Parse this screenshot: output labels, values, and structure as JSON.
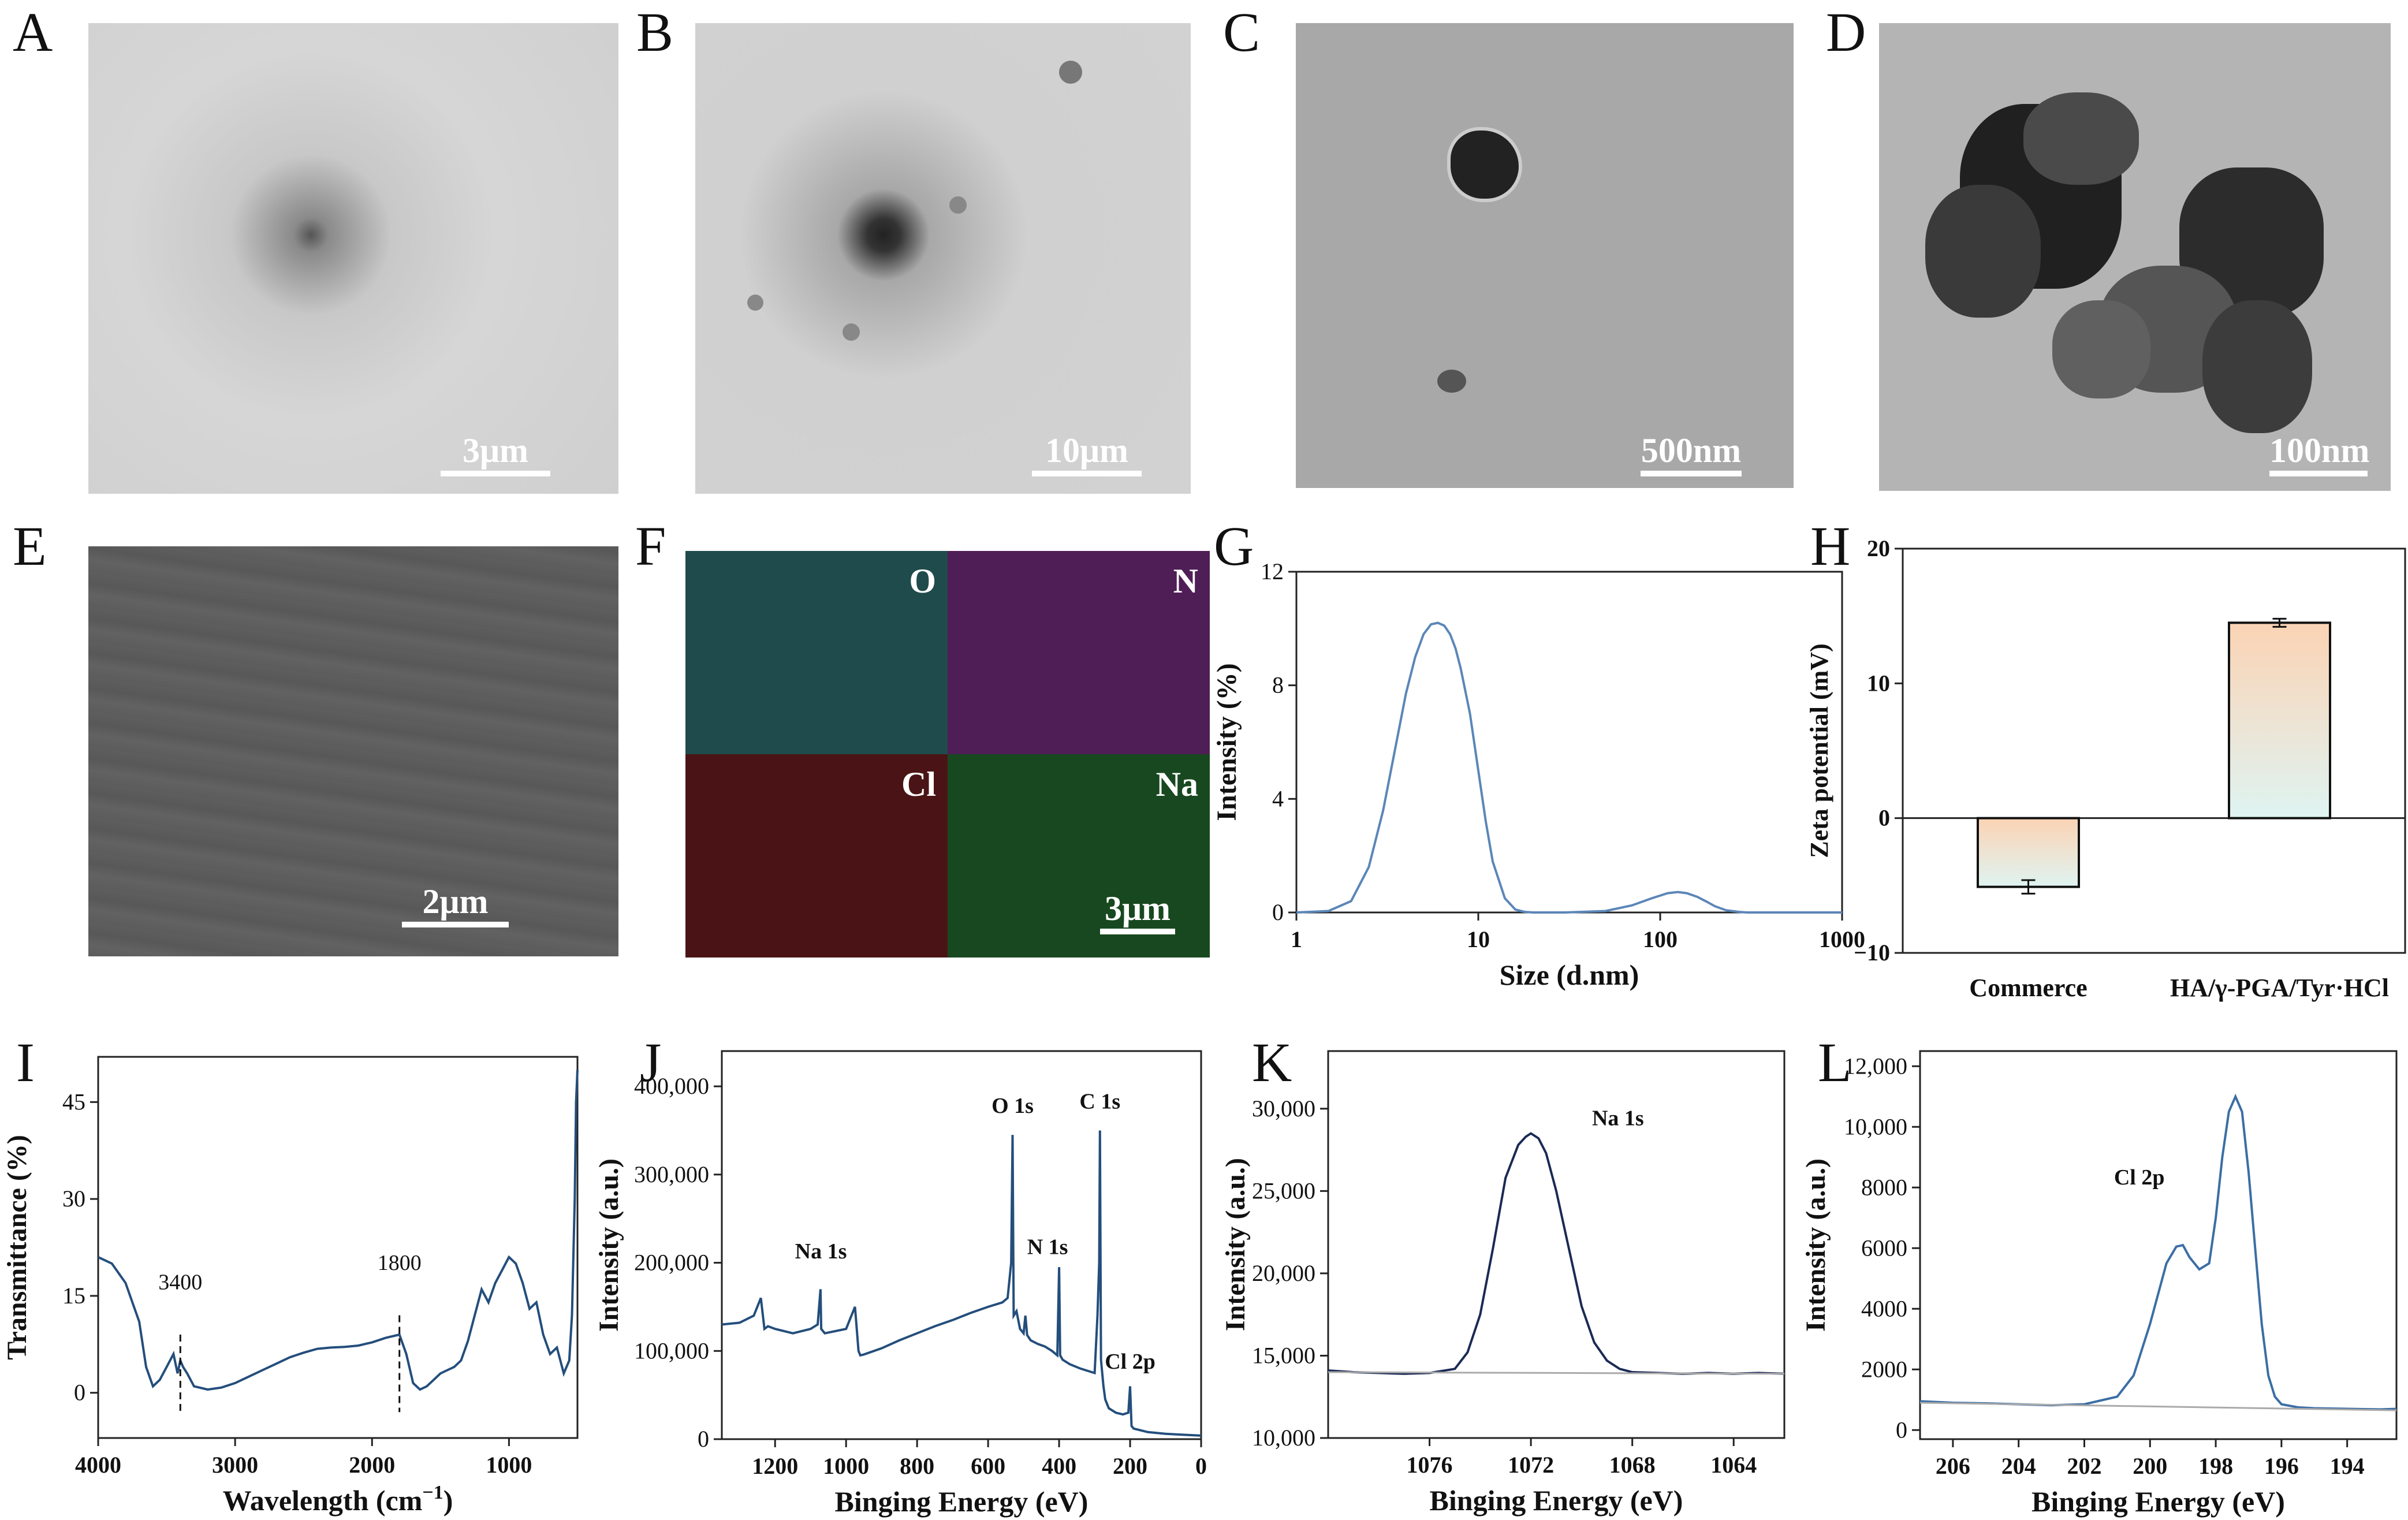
{
  "panels": {
    "A": {
      "letter": "A",
      "scale": "3μm"
    },
    "B": {
      "letter": "B",
      "scale": "10μm"
    },
    "C": {
      "letter": "C",
      "scale": "500nm"
    },
    "D": {
      "letter": "D",
      "scale": "100nm"
    },
    "E": {
      "letter": "E",
      "scale": "2μm"
    },
    "F": {
      "letter": "F",
      "scale": "3μm",
      "elements": [
        "O",
        "N",
        "Cl",
        "Na"
      ]
    },
    "G": {
      "letter": "G"
    },
    "H": {
      "letter": "H"
    },
    "I": {
      "letter": "I"
    },
    "J": {
      "letter": "J"
    },
    "K": {
      "letter": "K"
    },
    "L": {
      "letter": "L"
    }
  },
  "chart_data": [
    {
      "id": "G",
      "type": "line",
      "xlabel": "Size (d.nm)",
      "ylabel": "Intensity (%)",
      "xscale": "log",
      "xlim": [
        1,
        1000
      ],
      "ylim": [
        0,
        12
      ],
      "xticks": [
        "1",
        "10",
        "100",
        "1000"
      ],
      "yticks": [
        "0",
        "4",
        "8",
        "12"
      ],
      "series": [
        {
          "x": [
            1,
            1.5,
            2,
            2.5,
            3,
            3.5,
            4,
            4.5,
            5,
            5.5,
            6,
            6.5,
            7,
            7.5,
            8,
            9,
            10,
            11,
            12,
            14,
            16,
            18,
            20,
            30,
            50,
            70,
            90,
            110,
            125,
            140,
            160,
            180,
            200,
            230,
            270,
            300,
            500,
            1000
          ],
          "y": [
            0,
            0.05,
            0.4,
            1.6,
            3.6,
            5.8,
            7.7,
            9.0,
            9.8,
            10.15,
            10.2,
            10.1,
            9.8,
            9.3,
            8.6,
            7.0,
            5.0,
            3.2,
            1.8,
            0.5,
            0.1,
            0.02,
            0,
            0,
            0.05,
            0.25,
            0.5,
            0.68,
            0.72,
            0.68,
            0.55,
            0.38,
            0.22,
            0.08,
            0.02,
            0,
            0,
            0
          ],
          "color": "#5b86b8"
        }
      ]
    },
    {
      "id": "H",
      "type": "bar",
      "ylabel": "Zeta potential (mV)",
      "ylim": [
        -10,
        20
      ],
      "yticks": [
        "−10",
        "0",
        "10",
        "20"
      ],
      "categories": [
        "Commerce",
        "HA/γ-PGA/Tyr·HCl"
      ],
      "values": [
        -5.1,
        14.5
      ],
      "errors": [
        0.5,
        0.3
      ],
      "colors": {
        "top": "#fbd3b4",
        "bottom": "#dff4f2"
      }
    },
    {
      "id": "I",
      "type": "line",
      "xlabel": "Wavelength (cm",
      "xlabel_sup": "−1",
      "xlabel_end": ")",
      "ylabel": "Transmittance (%)",
      "xlim": [
        4000,
        500
      ],
      "ylim": [
        -7,
        52
      ],
      "xticks": [
        "4000",
        "3000",
        "2000",
        "1000"
      ],
      "yticks": [
        "0",
        "15",
        "30",
        "45"
      ],
      "annotations": [
        {
          "text": "3400",
          "x": 3400
        },
        {
          "text": "1800",
          "x": 1800
        }
      ],
      "series": [
        {
          "x": [
            4000,
            3900,
            3800,
            3700,
            3650,
            3600,
            3550,
            3500,
            3450,
            3420,
            3400,
            3380,
            3350,
            3300,
            3200,
            3100,
            3000,
            2900,
            2800,
            2700,
            2600,
            2500,
            2400,
            2300,
            2200,
            2100,
            2000,
            1900,
            1800,
            1750,
            1700,
            1650,
            1600,
            1550,
            1500,
            1450,
            1400,
            1350,
            1300,
            1250,
            1200,
            1150,
            1100,
            1050,
            1000,
            950,
            900,
            850,
            800,
            750,
            700,
            650,
            600,
            560,
            540,
            520,
            510,
            500
          ],
          "y": [
            21,
            20,
            17,
            11,
            4,
            1,
            2,
            4,
            6,
            3,
            5,
            4,
            3,
            1,
            0.5,
            0.8,
            1.5,
            2.5,
            3.5,
            4.5,
            5.5,
            6.2,
            6.8,
            7,
            7.1,
            7.3,
            7.8,
            8.5,
            9,
            6,
            1.5,
            0.5,
            1,
            2,
            3,
            3.5,
            4,
            5,
            8,
            12,
            16,
            14,
            17,
            19,
            21,
            20,
            17,
            13,
            14,
            9,
            6,
            7,
            3,
            5,
            12,
            30,
            45,
            50
          ],
          "color": "#244e7c"
        }
      ]
    },
    {
      "id": "J",
      "type": "line",
      "xlabel": "Binging Energy (eV)",
      "ylabel": "Intensity (a.u.)",
      "xlim": [
        1350,
        0
      ],
      "ylim": [
        0,
        440000
      ],
      "xticks": [
        "1200",
        "1000",
        "800",
        "600",
        "400",
        "200",
        "0"
      ],
      "yticks": [
        "0",
        "100,000",
        "200,000",
        "300,000",
        "400,000"
      ],
      "annotations": [
        {
          "text": "O 1s",
          "x": 531
        },
        {
          "text": "C 1s",
          "x": 285
        },
        {
          "text": "N 1s",
          "x": 400
        },
        {
          "text": "Na 1s",
          "x": 1071
        },
        {
          "text": "Cl 2p",
          "x": 200
        }
      ],
      "series": [
        {
          "x": [
            1350,
            1300,
            1260,
            1240,
            1230,
            1220,
            1200,
            1150,
            1100,
            1080,
            1072,
            1070,
            1060,
            1000,
            975,
            965,
            960,
            950,
            900,
            850,
            800,
            750,
            700,
            650,
            600,
            560,
            545,
            535,
            531,
            528,
            520,
            510,
            500,
            495,
            490,
            480,
            460,
            440,
            420,
            405,
            400,
            397,
            390,
            370,
            340,
            300,
            292,
            287,
            285,
            282,
            275,
            270,
            260,
            240,
            220,
            205,
            200,
            196,
            190,
            150,
            100,
            50,
            0
          ],
          "y": [
            130000,
            132000,
            140000,
            160000,
            125000,
            128000,
            125000,
            120000,
            125000,
            130000,
            170000,
            125000,
            120000,
            125000,
            150000,
            100000,
            95000,
            96000,
            103000,
            112000,
            120000,
            128000,
            135000,
            143000,
            150000,
            155000,
            160000,
            200000,
            345000,
            140000,
            145000,
            125000,
            120000,
            140000,
            118000,
            112000,
            108000,
            105000,
            100000,
            95000,
            195000,
            95000,
            90000,
            85000,
            80000,
            75000,
            140000,
            200000,
            350000,
            90000,
            60000,
            45000,
            35000,
            30000,
            28000,
            30000,
            60000,
            15000,
            12000,
            8000,
            6000,
            5000,
            4000
          ],
          "color": "#244e7c"
        }
      ]
    },
    {
      "id": "K",
      "type": "line",
      "xlabel": "Binging Energy (eV)",
      "ylabel": "Intensity (a.u.)",
      "xlim": [
        1080,
        1062
      ],
      "ylim": [
        10000,
        33500
      ],
      "xticks": [
        "1076",
        "1072",
        "1068",
        "1064"
      ],
      "yticks": [
        "10,000",
        "15,000",
        "20,000",
        "25,000",
        "30,000"
      ],
      "annotations": [
        {
          "text": "Na 1s",
          "x": 1071.3
        }
      ],
      "series": [
        {
          "name": "",
          "x": [
            1080,
            1079,
            1078,
            1077,
            1076,
            1075,
            1074.5,
            1074,
            1073.5,
            1073,
            1072.5,
            1072.2,
            1072,
            1071.7,
            1071.4,
            1071,
            1070.5,
            1070,
            1069.5,
            1069,
            1068.5,
            1068,
            1067,
            1066,
            1065,
            1064,
            1063,
            1062
          ],
          "y": [
            14100,
            14000,
            13950,
            13900,
            13950,
            14200,
            15200,
            17500,
            21500,
            25800,
            27800,
            28300,
            28500,
            28200,
            27300,
            25000,
            21500,
            18000,
            15800,
            14700,
            14200,
            14000,
            13950,
            13900,
            13950,
            13900,
            13950,
            13900
          ],
          "color": "#1b2a55"
        },
        {
          "name": "",
          "x": [
            1080,
            1062
          ],
          "y": [
            14000,
            13900
          ],
          "color": "#aaaaaa"
        }
      ]
    },
    {
      "id": "L",
      "type": "line",
      "xlabel": "Binging Energy (eV)",
      "ylabel": "Intensity (a.u.)",
      "xlim": [
        207,
        192.5
      ],
      "ylim": [
        -300,
        12500
      ],
      "xticks": [
        "206",
        "204",
        "202",
        "200",
        "198",
        "196",
        "194"
      ],
      "yticks": [
        "0",
        "2000",
        "4000",
        "6000",
        "8000",
        "10,000",
        "12,000"
      ],
      "annotations": [
        {
          "text": "Cl 2p",
          "x": 199.8
        }
      ],
      "series": [
        {
          "name": "",
          "x": [
            207,
            206,
            205,
            204,
            203,
            202,
            201,
            200.5,
            200,
            199.5,
            199.2,
            199,
            198.8,
            198.5,
            198.2,
            198,
            197.8,
            197.6,
            197.4,
            197.2,
            197,
            196.8,
            196.6,
            196.4,
            196.2,
            196,
            195.5,
            195,
            194,
            193,
            192.5
          ],
          "y": [
            950,
            900,
            880,
            850,
            820,
            850,
            1100,
            1800,
            3500,
            5500,
            6050,
            6100,
            5700,
            5300,
            5500,
            7000,
            9000,
            10500,
            11000,
            10500,
            8500,
            6000,
            3500,
            1800,
            1100,
            850,
            750,
            720,
            700,
            680,
            700
          ],
          "color": "#3b6ea5"
        },
        {
          "name": "",
          "x": [
            207,
            192.5
          ],
          "y": [
            900,
            650
          ],
          "color": "#aaaaaa"
        }
      ]
    }
  ]
}
